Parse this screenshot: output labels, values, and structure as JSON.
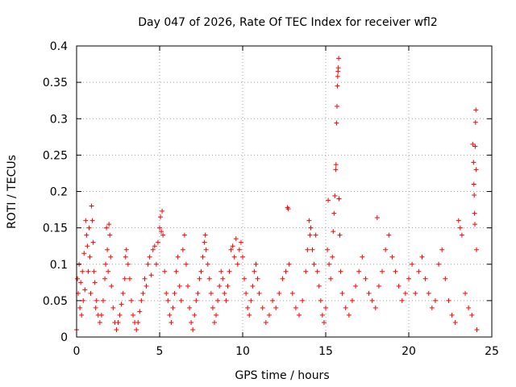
{
  "chart_data": {
    "type": "scatter",
    "title": "Day 047 of 2026, Rate Of TEC Index for receiver wfl2",
    "xlabel": "GPS time / hours",
    "ylabel": "ROTI / TECUs",
    "xlim": [
      0,
      25
    ],
    "ylim": [
      0,
      0.4
    ],
    "x_ticks": [
      0,
      5,
      10,
      15,
      20,
      25
    ],
    "x_tick_labels": [
      "0",
      "5",
      "10",
      "15",
      "20",
      "25"
    ],
    "y_ticks": [
      0,
      0.05,
      0.1,
      0.15,
      0.2,
      0.25,
      0.3,
      0.35,
      0.4
    ],
    "y_tick_labels": [
      "0",
      "0.05",
      "0.1",
      "0.15",
      "0.2",
      "0.25",
      "0.3",
      "0.35",
      "0.4"
    ],
    "grid": true,
    "marker": "+",
    "series": [
      {
        "name": "ROTI",
        "color": "#ff0000",
        "points": [
          [
            0.0,
            0.01
          ],
          [
            0.05,
            0.08
          ],
          [
            0.1,
            0.06
          ],
          [
            0.15,
            0.1
          ],
          [
            0.2,
            0.04
          ],
          [
            0.25,
            0.075
          ],
          [
            0.3,
            0.03
          ],
          [
            0.35,
            0.09
          ],
          [
            0.4,
            0.05
          ],
          [
            0.45,
            0.115
          ],
          [
            0.5,
            0.065
          ],
          [
            0.55,
            0.16
          ],
          [
            0.6,
            0.14
          ],
          [
            0.65,
            0.125
          ],
          [
            0.7,
            0.09
          ],
          [
            0.75,
            0.15
          ],
          [
            0.8,
            0.11
          ],
          [
            0.85,
            0.06
          ],
          [
            0.9,
            0.18
          ],
          [
            0.95,
            0.16
          ],
          [
            1.0,
            0.13
          ],
          [
            1.05,
            0.09
          ],
          [
            1.1,
            0.075
          ],
          [
            1.15,
            0.04
          ],
          [
            1.2,
            0.05
          ],
          [
            1.3,
            0.03
          ],
          [
            1.4,
            0.02
          ],
          [
            1.5,
            0.03
          ],
          [
            1.6,
            0.05
          ],
          [
            1.7,
            0.08
          ],
          [
            1.75,
            0.1
          ],
          [
            1.8,
            0.15
          ],
          [
            1.85,
            0.12
          ],
          [
            1.9,
            0.09
          ],
          [
            1.95,
            0.155
          ],
          [
            2.0,
            0.14
          ],
          [
            2.05,
            0.11
          ],
          [
            2.1,
            0.07
          ],
          [
            2.2,
            0.04
          ],
          [
            2.3,
            0.02
          ],
          [
            2.4,
            0.01
          ],
          [
            2.5,
            0.02
          ],
          [
            2.6,
            0.03
          ],
          [
            2.7,
            0.045
          ],
          [
            2.8,
            0.06
          ],
          [
            2.9,
            0.08
          ],
          [
            2.95,
            0.11
          ],
          [
            3.0,
            0.12
          ],
          [
            3.1,
            0.1
          ],
          [
            3.2,
            0.08
          ],
          [
            3.3,
            0.05
          ],
          [
            3.4,
            0.03
          ],
          [
            3.5,
            0.02
          ],
          [
            3.6,
            0.01
          ],
          [
            3.7,
            0.02
          ],
          [
            3.8,
            0.035
          ],
          [
            3.9,
            0.05
          ],
          [
            4.0,
            0.06
          ],
          [
            4.1,
            0.08
          ],
          [
            4.2,
            0.07
          ],
          [
            4.3,
            0.1
          ],
          [
            4.4,
            0.11
          ],
          [
            4.5,
            0.085
          ],
          [
            4.6,
            0.12
          ],
          [
            4.7,
            0.125
          ],
          [
            4.8,
            0.1
          ],
          [
            4.9,
            0.13
          ],
          [
            5.0,
            0.15
          ],
          [
            5.05,
            0.165
          ],
          [
            5.1,
            0.145
          ],
          [
            5.15,
            0.173
          ],
          [
            5.2,
            0.14
          ],
          [
            5.3,
            0.09
          ],
          [
            5.4,
            0.06
          ],
          [
            5.5,
            0.05
          ],
          [
            5.6,
            0.03
          ],
          [
            5.7,
            0.02
          ],
          [
            5.8,
            0.04
          ],
          [
            5.9,
            0.06
          ],
          [
            6.0,
            0.09
          ],
          [
            6.1,
            0.11
          ],
          [
            6.2,
            0.07
          ],
          [
            6.3,
            0.05
          ],
          [
            6.4,
            0.12
          ],
          [
            6.5,
            0.14
          ],
          [
            6.6,
            0.1
          ],
          [
            6.7,
            0.07
          ],
          [
            6.8,
            0.04
          ],
          [
            6.9,
            0.02
          ],
          [
            7.0,
            0.01
          ],
          [
            7.1,
            0.03
          ],
          [
            7.2,
            0.05
          ],
          [
            7.3,
            0.06
          ],
          [
            7.4,
            0.08
          ],
          [
            7.5,
            0.09
          ],
          [
            7.6,
            0.11
          ],
          [
            7.7,
            0.13
          ],
          [
            7.75,
            0.14
          ],
          [
            7.8,
            0.12
          ],
          [
            7.9,
            0.1
          ],
          [
            8.0,
            0.08
          ],
          [
            8.1,
            0.06
          ],
          [
            8.2,
            0.04
          ],
          [
            8.3,
            0.02
          ],
          [
            8.4,
            0.03
          ],
          [
            8.5,
            0.05
          ],
          [
            8.6,
            0.07
          ],
          [
            8.7,
            0.09
          ],
          [
            8.8,
            0.08
          ],
          [
            8.9,
            0.06
          ],
          [
            9.0,
            0.05
          ],
          [
            9.1,
            0.07
          ],
          [
            9.2,
            0.09
          ],
          [
            9.3,
            0.12
          ],
          [
            9.4,
            0.125
          ],
          [
            9.5,
            0.11
          ],
          [
            9.6,
            0.135
          ],
          [
            9.7,
            0.1
          ],
          [
            9.8,
            0.12
          ],
          [
            9.9,
            0.13
          ],
          [
            10.0,
            0.11
          ],
          [
            10.1,
            0.08
          ],
          [
            10.2,
            0.06
          ],
          [
            10.3,
            0.04
          ],
          [
            10.4,
            0.03
          ],
          [
            10.5,
            0.05
          ],
          [
            10.6,
            0.07
          ],
          [
            10.7,
            0.09
          ],
          [
            10.8,
            0.1
          ],
          [
            10.9,
            0.08
          ],
          [
            11.0,
            0.06
          ],
          [
            11.2,
            0.04
          ],
          [
            11.4,
            0.02
          ],
          [
            11.6,
            0.03
          ],
          [
            11.8,
            0.05
          ],
          [
            12.0,
            0.04
          ],
          [
            12.2,
            0.06
          ],
          [
            12.4,
            0.08
          ],
          [
            12.6,
            0.09
          ],
          [
            12.7,
            0.178
          ],
          [
            12.75,
            0.176
          ],
          [
            12.8,
            0.1
          ],
          [
            13.0,
            0.06
          ],
          [
            13.2,
            0.04
          ],
          [
            13.4,
            0.03
          ],
          [
            13.6,
            0.05
          ],
          [
            13.8,
            0.09
          ],
          [
            13.9,
            0.12
          ],
          [
            14.0,
            0.16
          ],
          [
            14.05,
            0.14
          ],
          [
            14.1,
            0.15
          ],
          [
            14.2,
            0.12
          ],
          [
            14.3,
            0.1
          ],
          [
            14.4,
            0.14
          ],
          [
            14.5,
            0.09
          ],
          [
            14.6,
            0.07
          ],
          [
            14.7,
            0.05
          ],
          [
            14.8,
            0.03
          ],
          [
            14.9,
            0.02
          ],
          [
            15.0,
            0.04
          ],
          [
            15.1,
            0.12
          ],
          [
            15.15,
            0.188
          ],
          [
            15.2,
            0.1
          ],
          [
            15.3,
            0.08
          ],
          [
            15.4,
            0.11
          ],
          [
            15.45,
            0.145
          ],
          [
            15.5,
            0.17
          ],
          [
            15.55,
            0.194
          ],
          [
            15.6,
            0.23
          ],
          [
            15.62,
            0.237
          ],
          [
            15.65,
            0.294
          ],
          [
            15.68,
            0.317
          ],
          [
            15.7,
            0.345
          ],
          [
            15.72,
            0.358
          ],
          [
            15.74,
            0.365
          ],
          [
            15.76,
            0.37
          ],
          [
            15.78,
            0.383
          ],
          [
            15.8,
            0.19
          ],
          [
            15.85,
            0.14
          ],
          [
            15.9,
            0.09
          ],
          [
            16.0,
            0.06
          ],
          [
            16.2,
            0.04
          ],
          [
            16.4,
            0.03
          ],
          [
            16.6,
            0.05
          ],
          [
            16.8,
            0.07
          ],
          [
            17.0,
            0.09
          ],
          [
            17.2,
            0.11
          ],
          [
            17.4,
            0.08
          ],
          [
            17.6,
            0.06
          ],
          [
            17.8,
            0.05
          ],
          [
            18.0,
            0.04
          ],
          [
            18.1,
            0.164
          ],
          [
            18.2,
            0.07
          ],
          [
            18.4,
            0.09
          ],
          [
            18.6,
            0.12
          ],
          [
            18.8,
            0.14
          ],
          [
            19.0,
            0.11
          ],
          [
            19.2,
            0.09
          ],
          [
            19.4,
            0.07
          ],
          [
            19.6,
            0.05
          ],
          [
            19.8,
            0.06
          ],
          [
            20.0,
            0.08
          ],
          [
            20.2,
            0.1
          ],
          [
            20.4,
            0.06
          ],
          [
            20.6,
            0.09
          ],
          [
            20.8,
            0.11
          ],
          [
            21.0,
            0.08
          ],
          [
            21.2,
            0.06
          ],
          [
            21.4,
            0.04
          ],
          [
            21.6,
            0.05
          ],
          [
            21.8,
            0.1
          ],
          [
            22.0,
            0.12
          ],
          [
            22.2,
            0.08
          ],
          [
            22.4,
            0.05
          ],
          [
            22.6,
            0.03
          ],
          [
            22.8,
            0.02
          ],
          [
            23.0,
            0.16
          ],
          [
            23.1,
            0.15
          ],
          [
            23.2,
            0.14
          ],
          [
            23.4,
            0.06
          ],
          [
            23.6,
            0.04
          ],
          [
            23.8,
            0.03
          ],
          [
            23.85,
            0.265
          ],
          [
            23.9,
            0.24
          ],
          [
            23.92,
            0.21
          ],
          [
            23.94,
            0.195
          ],
          [
            23.96,
            0.17
          ],
          [
            23.98,
            0.155
          ],
          [
            24.0,
            0.262
          ],
          [
            24.02,
            0.295
          ],
          [
            24.04,
            0.312
          ],
          [
            24.06,
            0.23
          ],
          [
            24.08,
            0.12
          ],
          [
            24.1,
            0.01
          ]
        ]
      }
    ]
  }
}
